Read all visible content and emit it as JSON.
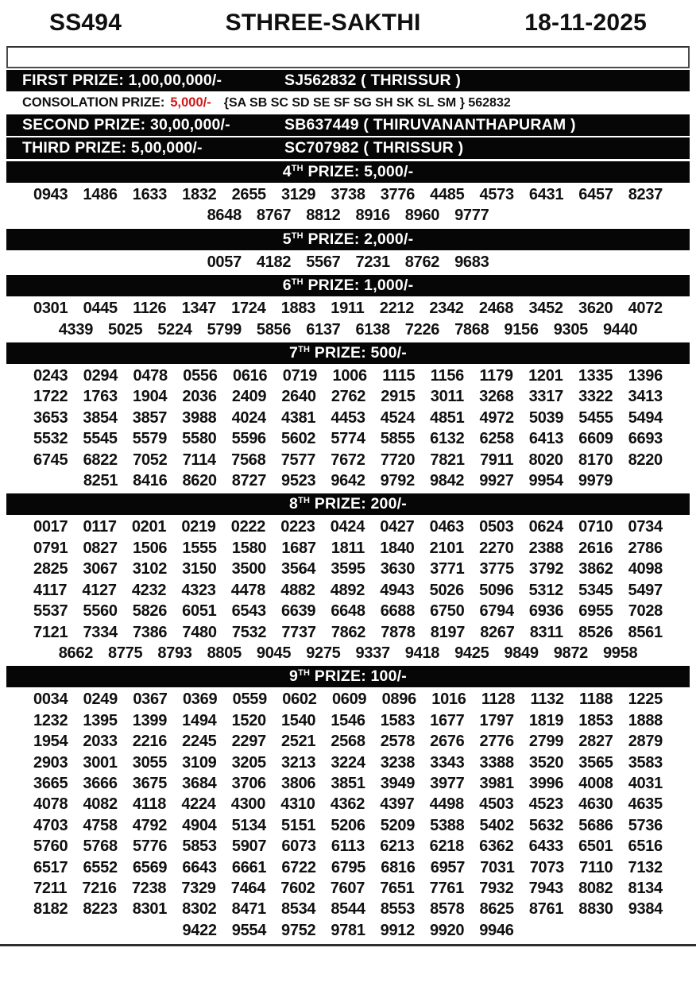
{
  "header": {
    "draw_code": "SS494",
    "lottery_name": "STHREE-SAKTHI",
    "draw_date": "18-11-2025"
  },
  "main_prizes": [
    {
      "label": "FIRST PRIZE: 1,00,00,000/-",
      "winner": "SJ562832 ( THRISSUR )"
    },
    {
      "label": "SECOND PRIZE: 30,00,000/-",
      "winner": "SB637449 ( THIRUVANANTHAPURAM )"
    },
    {
      "label": "THIRD PRIZE: 5,00,000/-",
      "winner": "SC707982 ( THRISSUR )"
    }
  ],
  "consolation": {
    "label": "CONSOLATION PRIZE:",
    "amount": "5,000/-",
    "series": "{SA SB SC SD SE SF SG SH SK SL SM } 562832"
  },
  "colors": {
    "bar_background": "#060606",
    "bar_text": "#ffffff",
    "consolation_amount_red": "#d01818"
  },
  "prize_sections": [
    {
      "ordinal": "4",
      "suffix": "TH",
      "rest": " PRIZE: 5,000/-",
      "rows": [
        [
          "0943",
          "1486",
          "1633",
          "1832",
          "2655",
          "3129",
          "3738",
          "3776",
          "4485",
          "4573",
          "6431",
          "6457",
          "8237"
        ],
        [
          "8648",
          "8767",
          "8812",
          "8916",
          "8960",
          "9777"
        ]
      ]
    },
    {
      "ordinal": "5",
      "suffix": "TH",
      "rest": " PRIZE: 2,000/-",
      "rows": [
        [
          "0057",
          "4182",
          "5567",
          "7231",
          "8762",
          "9683"
        ]
      ]
    },
    {
      "ordinal": "6",
      "suffix": "TH",
      "rest": " PRIZE: 1,000/-",
      "rows": [
        [
          "0301",
          "0445",
          "1126",
          "1347",
          "1724",
          "1883",
          "1911",
          "2212",
          "2342",
          "2468",
          "3452",
          "3620",
          "4072"
        ],
        [
          "4339",
          "5025",
          "5224",
          "5799",
          "5856",
          "6137",
          "6138",
          "7226",
          "7868",
          "9156",
          "9305",
          "9440"
        ]
      ]
    },
    {
      "ordinal": "7",
      "suffix": "TH",
      "rest": " PRIZE: 500/-",
      "rows": [
        [
          "0243",
          "0294",
          "0478",
          "0556",
          "0616",
          "0719",
          "1006",
          "1115",
          "1156",
          "1179",
          "1201",
          "1335",
          "1396"
        ],
        [
          "1722",
          "1763",
          "1904",
          "2036",
          "2409",
          "2640",
          "2762",
          "2915",
          "3011",
          "3268",
          "3317",
          "3322",
          "3413"
        ],
        [
          "3653",
          "3854",
          "3857",
          "3988",
          "4024",
          "4381",
          "4453",
          "4524",
          "4851",
          "4972",
          "5039",
          "5455",
          "5494"
        ],
        [
          "5532",
          "5545",
          "5579",
          "5580",
          "5596",
          "5602",
          "5774",
          "5855",
          "6132",
          "6258",
          "6413",
          "6609",
          "6693"
        ],
        [
          "6745",
          "6822",
          "7052",
          "7114",
          "7568",
          "7577",
          "7672",
          "7720",
          "7821",
          "7911",
          "8020",
          "8170",
          "8220"
        ],
        [
          "8251",
          "8416",
          "8620",
          "8727",
          "9523",
          "9642",
          "9792",
          "9842",
          "9927",
          "9954",
          "9979"
        ]
      ]
    },
    {
      "ordinal": "8",
      "suffix": "TH",
      "rest": " PRIZE: 200/-",
      "rows": [
        [
          "0017",
          "0117",
          "0201",
          "0219",
          "0222",
          "0223",
          "0424",
          "0427",
          "0463",
          "0503",
          "0624",
          "0710",
          "0734"
        ],
        [
          "0791",
          "0827",
          "1506",
          "1555",
          "1580",
          "1687",
          "1811",
          "1840",
          "2101",
          "2270",
          "2388",
          "2616",
          "2786"
        ],
        [
          "2825",
          "3067",
          "3102",
          "3150",
          "3500",
          "3564",
          "3595",
          "3630",
          "3771",
          "3775",
          "3792",
          "3862",
          "4098"
        ],
        [
          "4117",
          "4127",
          "4232",
          "4323",
          "4478",
          "4882",
          "4892",
          "4943",
          "5026",
          "5096",
          "5312",
          "5345",
          "5497"
        ],
        [
          "5537",
          "5560",
          "5826",
          "6051",
          "6543",
          "6639",
          "6648",
          "6688",
          "6750",
          "6794",
          "6936",
          "6955",
          "7028"
        ],
        [
          "7121",
          "7334",
          "7386",
          "7480",
          "7532",
          "7737",
          "7862",
          "7878",
          "8197",
          "8267",
          "8311",
          "8526",
          "8561"
        ],
        [
          "8662",
          "8775",
          "8793",
          "8805",
          "9045",
          "9275",
          "9337",
          "9418",
          "9425",
          "9849",
          "9872",
          "9958"
        ]
      ]
    },
    {
      "ordinal": "9",
      "suffix": "TH",
      "rest": " PRIZE: 100/-",
      "rows": [
        [
          "0034",
          "0249",
          "0367",
          "0369",
          "0559",
          "0602",
          "0609",
          "0896",
          "1016",
          "1128",
          "1132",
          "1188",
          "1225"
        ],
        [
          "1232",
          "1395",
          "1399",
          "1494",
          "1520",
          "1540",
          "1546",
          "1583",
          "1677",
          "1797",
          "1819",
          "1853",
          "1888"
        ],
        [
          "1954",
          "2033",
          "2216",
          "2245",
          "2297",
          "2521",
          "2568",
          "2578",
          "2676",
          "2776",
          "2799",
          "2827",
          "2879"
        ],
        [
          "2903",
          "3001",
          "3055",
          "3109",
          "3205",
          "3213",
          "3224",
          "3238",
          "3343",
          "3388",
          "3520",
          "3565",
          "3583"
        ],
        [
          "3665",
          "3666",
          "3675",
          "3684",
          "3706",
          "3806",
          "3851",
          "3949",
          "3977",
          "3981",
          "3996",
          "4008",
          "4031"
        ],
        [
          "4078",
          "4082",
          "4118",
          "4224",
          "4300",
          "4310",
          "4362",
          "4397",
          "4498",
          "4503",
          "4523",
          "4630",
          "4635"
        ],
        [
          "4703",
          "4758",
          "4792",
          "4904",
          "5134",
          "5151",
          "5206",
          "5209",
          "5388",
          "5402",
          "5632",
          "5686",
          "5736"
        ],
        [
          "5760",
          "5768",
          "5776",
          "5853",
          "5907",
          "6073",
          "6113",
          "6213",
          "6218",
          "6362",
          "6433",
          "6501",
          "6516"
        ],
        [
          "6517",
          "6552",
          "6569",
          "6643",
          "6661",
          "6722",
          "6795",
          "6816",
          "6957",
          "7031",
          "7073",
          "7110",
          "7132"
        ],
        [
          "7211",
          "7216",
          "7238",
          "7329",
          "7464",
          "7602",
          "7607",
          "7651",
          "7761",
          "7932",
          "7943",
          "8082",
          "8134"
        ],
        [
          "8182",
          "8223",
          "8301",
          "8302",
          "8471",
          "8534",
          "8544",
          "8553",
          "8578",
          "8625",
          "8761",
          "8830",
          "9384"
        ],
        [
          "9422",
          "9554",
          "9752",
          "9781",
          "9912",
          "9920",
          "9946"
        ]
      ]
    }
  ]
}
